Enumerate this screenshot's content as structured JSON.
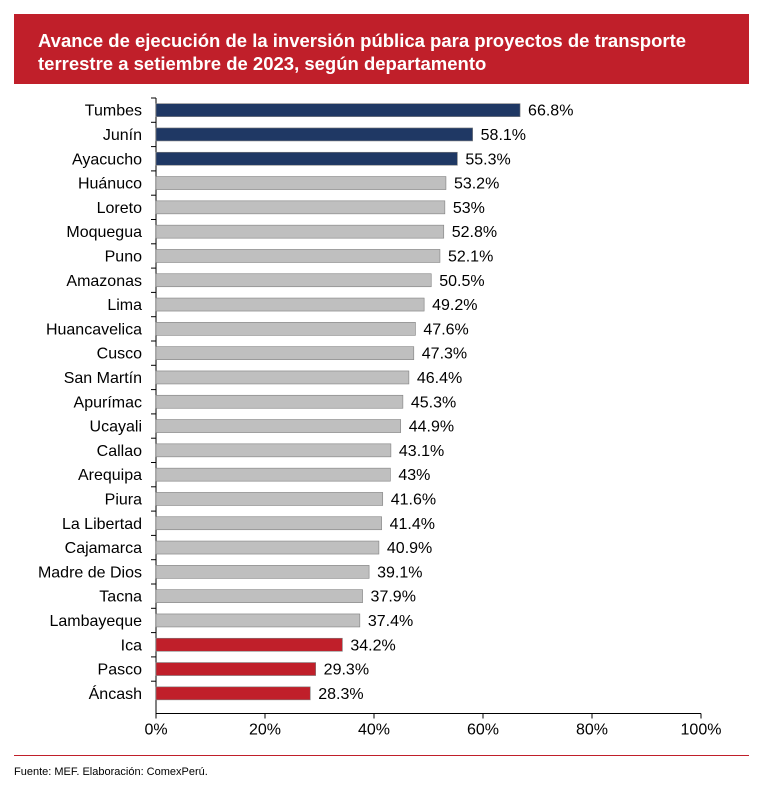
{
  "header": {
    "title": "Avance de ejecución de la inversión pública para proyectos de transporte terrestre a setiembre de 2023, según departamento"
  },
  "footer": {
    "source": "Fuente: MEF. Elaboración: ComexPerú."
  },
  "colors": {
    "top": "#1f3864",
    "middle": "#bfbfbf",
    "bottom": "#c01f2a",
    "bar_outline": "#7f7f7f"
  },
  "chart_data": {
    "type": "bar",
    "orientation": "horizontal",
    "title": "Avance de ejecución de la inversión pública para proyectos de transporte terrestre a setiembre de 2023, según departamento",
    "xlabel": "",
    "ylabel": "",
    "xlim": [
      0,
      100
    ],
    "xticks": [
      "0%",
      "20%",
      "40%",
      "60%",
      "80%",
      "100%"
    ],
    "categories": [
      "Tumbes",
      "Junín",
      "Ayacucho",
      "Huánuco",
      "Loreto",
      "Moquegua",
      "Puno",
      "Amazonas",
      "Lima",
      "Huancavelica",
      "Cusco",
      "San Martín",
      "Apurímac",
      "Ucayali",
      "Callao",
      "Arequipa",
      "Piura",
      "La Libertad",
      "Cajamarca",
      "Madre de Dios",
      "Tacna",
      "Lambayeque",
      "Ica",
      "Pasco",
      "Áncash"
    ],
    "values": [
      66.8,
      58.1,
      55.3,
      53.2,
      53,
      52.8,
      52.1,
      50.5,
      49.2,
      47.6,
      47.3,
      46.4,
      45.3,
      44.9,
      43.1,
      43,
      41.6,
      41.4,
      40.9,
      39.1,
      37.9,
      37.4,
      34.2,
      29.3,
      28.3
    ],
    "labels": [
      "66.8%",
      "58.1%",
      "55.3%",
      "53.2%",
      "53%",
      "52.8%",
      "52.1%",
      "50.5%",
      "49.2%",
      "47.6%",
      "47.3%",
      "46.4%",
      "45.3%",
      "44.9%",
      "43.1%",
      "43%",
      "41.6%",
      "41.4%",
      "40.9%",
      "39.1%",
      "37.9%",
      "37.4%",
      "34.2%",
      "29.3%",
      "28.3%"
    ],
    "highlight": [
      "top",
      "top",
      "top",
      "middle",
      "middle",
      "middle",
      "middle",
      "middle",
      "middle",
      "middle",
      "middle",
      "middle",
      "middle",
      "middle",
      "middle",
      "middle",
      "middle",
      "middle",
      "middle",
      "middle",
      "middle",
      "middle",
      "bottom",
      "bottom",
      "bottom"
    ]
  }
}
